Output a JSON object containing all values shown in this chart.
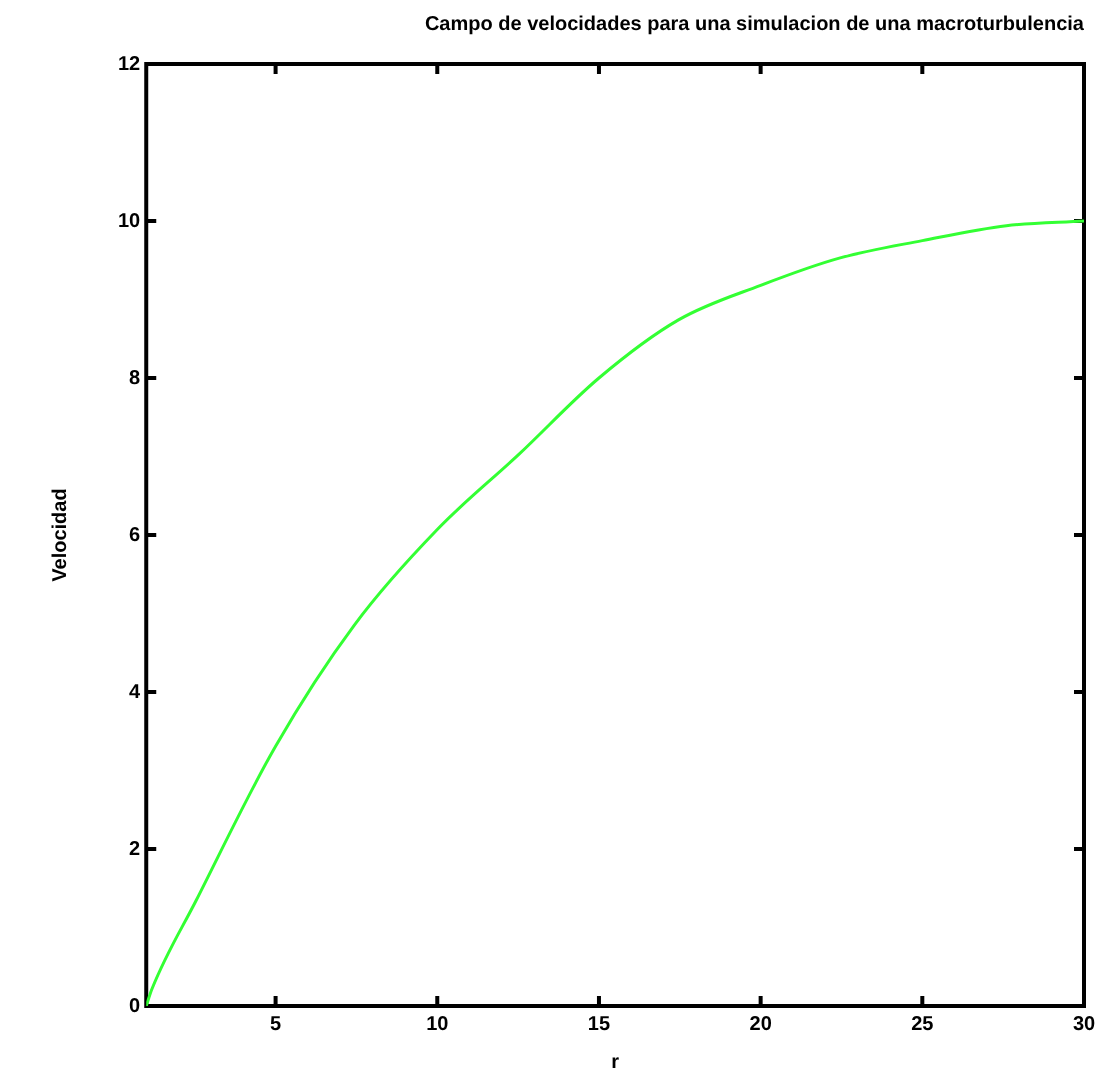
{
  "chart_data": {
    "type": "line",
    "title": "Campo de velocidades para una simulacion de una macroturbulencia",
    "xlabel": "r",
    "ylabel": "Velocidad",
    "x": [
      1,
      1.17,
      2.55,
      5,
      7.43,
      10,
      12.53,
      15,
      17.46,
      20,
      22.46,
      25,
      27.6,
      30
    ],
    "series": [
      {
        "color": "#33ff33",
        "values": [
          0,
          0.21,
          1.35,
          3.31,
          4.85,
          6.07,
          7.03,
          8.0,
          8.74,
          9.18,
          9.53,
          9.75,
          9.94,
          10.0
        ]
      }
    ],
    "xlim": [
      1,
      30
    ],
    "xticks": [
      5,
      10,
      15,
      20,
      25,
      30
    ],
    "ylim": [
      0,
      12
    ],
    "yticks": [
      0,
      2,
      4,
      6,
      8,
      10,
      12
    ],
    "grid": false,
    "legend": false,
    "marker": "none",
    "line_style": "solid"
  }
}
